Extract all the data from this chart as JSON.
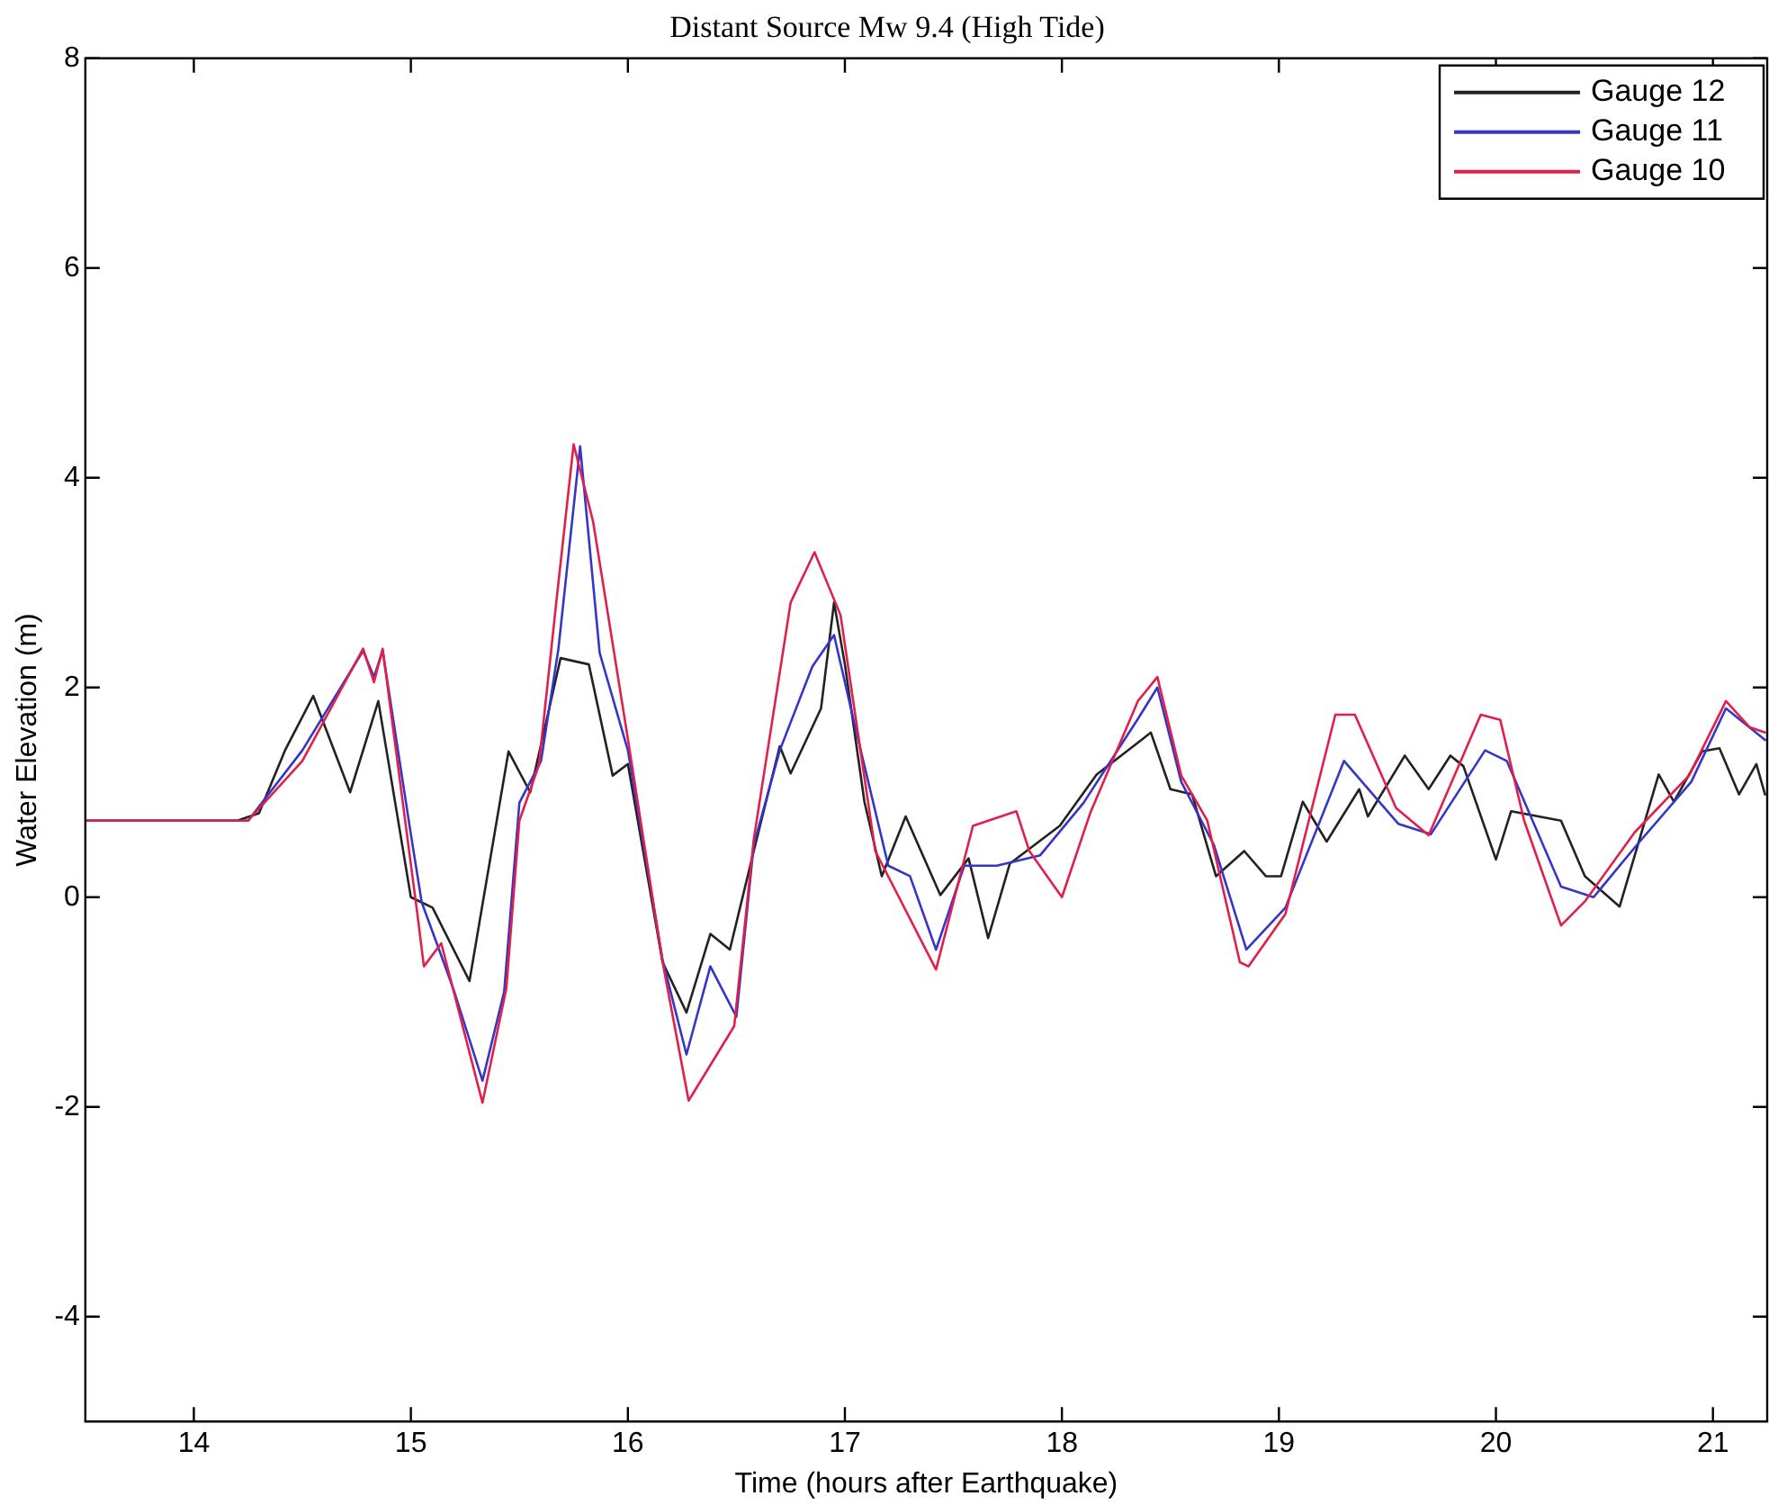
{
  "chart_data": {
    "type": "line",
    "title": "Distant Source Mw 9.4 (High Tide)",
    "xlabel": "Time (hours after Earthquake)",
    "ylabel": "Water Elevation (m)",
    "xlim": [
      13.5,
      21.25
    ],
    "xticks": [
      14,
      15,
      16,
      17,
      18,
      19,
      20,
      21
    ],
    "ylim": [
      -5,
      8
    ],
    "yticks": [
      -4,
      -2,
      0,
      2,
      4,
      6,
      8
    ],
    "grid": false,
    "legend": "top right",
    "marker": "none",
    "line_style": "solid",
    "series": [
      {
        "name": "Gauge 12",
        "color": "#222222",
        "x": [
          13.5,
          14.2,
          14.3,
          14.42,
          14.55,
          14.72,
          14.85,
          15.0,
          15.1,
          15.27,
          15.45,
          15.55,
          15.69,
          15.82,
          15.93,
          16.0,
          16.16,
          16.27,
          16.38,
          16.47,
          16.58,
          16.7,
          16.75,
          16.89,
          16.95,
          17.0,
          17.09,
          17.17,
          17.28,
          17.44,
          17.57,
          17.66,
          17.76,
          17.99,
          18.16,
          18.41,
          18.5,
          18.6,
          18.71,
          18.84,
          18.94,
          19.01,
          19.11,
          19.22,
          19.37,
          19.41,
          19.58,
          19.69,
          19.79,
          19.85,
          20.0,
          20.07,
          20.3,
          20.41,
          20.57,
          20.75,
          20.82,
          20.95,
          21.03,
          21.12,
          21.2,
          21.24
        ],
        "values": [
          0.73,
          0.73,
          0.8,
          1.4,
          1.92,
          1.0,
          1.87,
          0.0,
          -0.1,
          -0.8,
          1.39,
          1.0,
          2.28,
          2.22,
          1.16,
          1.27,
          -0.62,
          -1.1,
          -0.35,
          -0.5,
          0.44,
          1.44,
          1.18,
          1.8,
          2.81,
          2.22,
          0.91,
          0.2,
          0.77,
          0.02,
          0.37,
          -0.39,
          0.32,
          0.68,
          1.17,
          1.57,
          1.03,
          0.98,
          0.2,
          0.44,
          0.2,
          0.2,
          0.91,
          0.53,
          1.03,
          0.77,
          1.35,
          1.03,
          1.35,
          1.25,
          0.36,
          0.82,
          0.73,
          0.2,
          -0.09,
          1.17,
          0.91,
          1.39,
          1.42,
          0.98,
          1.27,
          0.98
        ]
      },
      {
        "name": "Gauge 11",
        "color": "#3535c8",
        "x": [
          13.5,
          14.25,
          14.5,
          14.78,
          14.83,
          14.87,
          15.0,
          15.05,
          15.13,
          15.2,
          15.33,
          15.43,
          15.5,
          15.6,
          15.68,
          15.78,
          15.87,
          16.0,
          16.16,
          16.27,
          16.38,
          16.5,
          16.58,
          16.7,
          16.85,
          16.95,
          17.05,
          17.2,
          17.3,
          17.42,
          17.55,
          17.7,
          17.9,
          18.1,
          18.35,
          18.44,
          18.55,
          18.7,
          18.85,
          19.03,
          19.3,
          19.55,
          19.7,
          19.95,
          20.05,
          20.3,
          20.45,
          20.65,
          20.9,
          21.06,
          21.24
        ],
        "values": [
          0.73,
          0.73,
          1.4,
          2.35,
          2.1,
          2.35,
          0.6,
          -0.05,
          -0.5,
          -0.9,
          -1.75,
          -0.9,
          0.9,
          1.3,
          2.37,
          4.3,
          2.33,
          1.4,
          -0.6,
          -1.5,
          -0.66,
          -1.14,
          0.5,
          1.4,
          2.2,
          2.5,
          1.6,
          0.3,
          0.2,
          -0.5,
          0.3,
          0.3,
          0.4,
          0.9,
          1.7,
          2.0,
          1.1,
          0.5,
          -0.5,
          -0.1,
          1.3,
          0.7,
          0.6,
          1.4,
          1.3,
          0.1,
          0.0,
          0.5,
          1.1,
          1.8,
          1.5
        ]
      },
      {
        "name": "Gauge 10",
        "color": "#e0204a",
        "x": [
          13.5,
          14.25,
          14.5,
          14.78,
          14.83,
          14.87,
          15.03,
          15.06,
          15.14,
          15.33,
          15.44,
          15.5,
          15.59,
          15.67,
          15.75,
          15.84,
          16.0,
          16.16,
          16.28,
          16.49,
          16.58,
          16.75,
          16.86,
          16.98,
          17.14,
          17.42,
          17.59,
          17.79,
          17.85,
          18.0,
          18.13,
          18.35,
          18.44,
          18.55,
          18.67,
          18.82,
          18.86,
          19.03,
          19.26,
          19.35,
          19.54,
          19.69,
          19.93,
          20.02,
          20.13,
          20.3,
          20.41,
          20.64,
          20.89,
          21.06,
          21.17,
          21.24
        ],
        "values": [
          0.73,
          0.73,
          1.3,
          2.37,
          2.05,
          2.37,
          -0.16,
          -0.66,
          -0.44,
          -1.96,
          -0.87,
          0.73,
          1.26,
          2.81,
          4.32,
          3.58,
          1.51,
          -0.62,
          -1.94,
          -1.23,
          0.55,
          2.81,
          3.29,
          2.69,
          0.44,
          -0.69,
          0.68,
          0.82,
          0.44,
          0.0,
          0.8,
          1.87,
          2.1,
          1.16,
          0.73,
          -0.62,
          -0.66,
          -0.16,
          1.74,
          1.74,
          0.85,
          0.59,
          1.74,
          1.69,
          0.73,
          -0.27,
          -0.04,
          0.62,
          1.16,
          1.87,
          1.62,
          1.57
        ]
      }
    ]
  }
}
